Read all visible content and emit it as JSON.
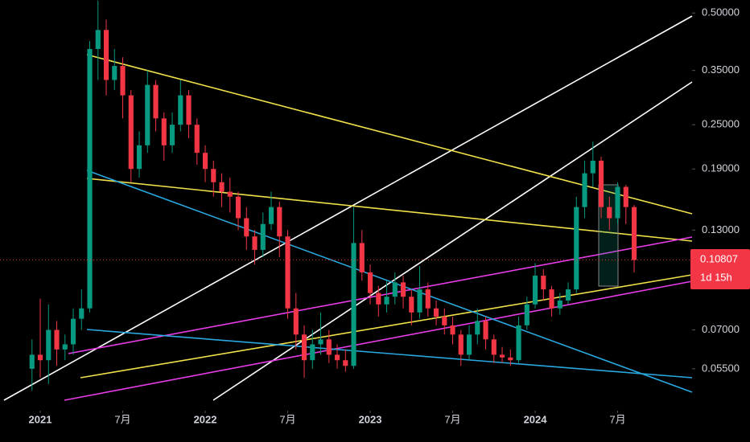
{
  "chart_data": {
    "type": "candlestick",
    "log_scale": true,
    "up_color": "#089981",
    "down_color": "#f23645",
    "x": [
      2020.95,
      2021.0,
      2021.05,
      2021.1,
      2021.15,
      2021.2,
      2021.25,
      2021.3,
      2021.35,
      2021.4,
      2021.45,
      2021.5,
      2021.55,
      2021.6,
      2021.65,
      2021.7,
      2021.75,
      2021.8,
      2021.85,
      2021.9,
      2021.95,
      2022.0,
      2022.05,
      2022.1,
      2022.15,
      2022.2,
      2022.25,
      2022.3,
      2022.35,
      2022.4,
      2022.45,
      2022.5,
      2022.55,
      2022.6,
      2022.65,
      2022.7,
      2022.75,
      2022.8,
      2022.85,
      2022.9,
      2022.95,
      2023.0,
      2023.05,
      2023.1,
      2023.15,
      2023.2,
      2023.25,
      2023.3,
      2023.35,
      2023.4,
      2023.45,
      2023.5,
      2023.55,
      2023.6,
      2023.65,
      2023.7,
      2023.75,
      2023.8,
      2023.85,
      2023.9,
      2023.95,
      2024.0,
      2024.05,
      2024.1,
      2024.15,
      2024.2,
      2024.25,
      2024.3,
      2024.35,
      2024.4,
      2024.45,
      2024.5,
      2024.55,
      2024.6
    ],
    "open": [
      0.055,
      0.06,
      0.058,
      0.07,
      0.062,
      0.064,
      0.075,
      0.08,
      0.4,
      0.45,
      0.33,
      0.36,
      0.3,
      0.19,
      0.22,
      0.32,
      0.26,
      0.22,
      0.25,
      0.3,
      0.25,
      0.21,
      0.19,
      0.175,
      0.165,
      0.16,
      0.14,
      0.125,
      0.115,
      0.135,
      0.15,
      0.125,
      0.08,
      0.068,
      0.058,
      0.064,
      0.066,
      0.06,
      0.058,
      0.056,
      0.12,
      0.1,
      0.088,
      0.082,
      0.086,
      0.094,
      0.086,
      0.078,
      0.09,
      0.08,
      0.076,
      0.072,
      0.068,
      0.06,
      0.068,
      0.074,
      0.066,
      0.06,
      0.059,
      0.058,
      0.072,
      0.082,
      0.098,
      0.09,
      0.08,
      0.084,
      0.09,
      0.15,
      0.185,
      0.2,
      0.15,
      0.14,
      0.17,
      0.15
    ],
    "high": [
      0.066,
      0.085,
      0.082,
      0.074,
      0.068,
      0.08,
      0.09,
      0.42,
      0.54,
      0.48,
      0.4,
      0.38,
      0.31,
      0.24,
      0.35,
      0.33,
      0.27,
      0.27,
      0.33,
      0.31,
      0.26,
      0.22,
      0.2,
      0.185,
      0.18,
      0.165,
      0.15,
      0.13,
      0.145,
      0.165,
      0.155,
      0.13,
      0.088,
      0.072,
      0.07,
      0.078,
      0.07,
      0.064,
      0.062,
      0.15,
      0.13,
      0.105,
      0.092,
      0.095,
      0.1,
      0.098,
      0.09,
      0.104,
      0.094,
      0.084,
      0.08,
      0.076,
      0.07,
      0.072,
      0.08,
      0.076,
      0.068,
      0.063,
      0.062,
      0.076,
      0.086,
      0.106,
      0.102,
      0.092,
      0.088,
      0.094,
      0.16,
      0.2,
      0.225,
      0.205,
      0.16,
      0.175,
      0.172,
      0.152
    ],
    "low": [
      0.048,
      0.052,
      0.05,
      0.056,
      0.058,
      0.06,
      0.07,
      0.078,
      0.33,
      0.3,
      0.31,
      0.26,
      0.175,
      0.18,
      0.21,
      0.24,
      0.2,
      0.21,
      0.24,
      0.23,
      0.195,
      0.175,
      0.16,
      0.15,
      0.145,
      0.13,
      0.115,
      0.105,
      0.11,
      0.13,
      0.11,
      0.075,
      0.062,
      0.052,
      0.055,
      0.06,
      0.057,
      0.055,
      0.054,
      0.055,
      0.095,
      0.082,
      0.076,
      0.078,
      0.082,
      0.08,
      0.072,
      0.075,
      0.076,
      0.072,
      0.068,
      0.064,
      0.056,
      0.058,
      0.064,
      0.062,
      0.057,
      0.057,
      0.056,
      0.057,
      0.07,
      0.08,
      0.084,
      0.076,
      0.077,
      0.082,
      0.088,
      0.14,
      0.17,
      0.14,
      0.13,
      0.135,
      0.135,
      0.1
    ],
    "close": [
      0.06,
      0.058,
      0.07,
      0.062,
      0.064,
      0.075,
      0.08,
      0.4,
      0.45,
      0.33,
      0.36,
      0.3,
      0.19,
      0.22,
      0.32,
      0.26,
      0.22,
      0.25,
      0.3,
      0.25,
      0.21,
      0.19,
      0.175,
      0.165,
      0.16,
      0.14,
      0.125,
      0.115,
      0.135,
      0.15,
      0.125,
      0.08,
      0.068,
      0.058,
      0.064,
      0.066,
      0.06,
      0.058,
      0.056,
      0.12,
      0.1,
      0.088,
      0.082,
      0.086,
      0.094,
      0.086,
      0.078,
      0.09,
      0.08,
      0.076,
      0.072,
      0.068,
      0.06,
      0.068,
      0.074,
      0.066,
      0.06,
      0.059,
      0.058,
      0.072,
      0.082,
      0.098,
      0.09,
      0.08,
      0.084,
      0.09,
      0.15,
      0.185,
      0.2,
      0.15,
      0.14,
      0.17,
      0.15,
      0.108
    ],
    "xlim": [
      2020.756,
      2024.951
    ],
    "xticks": [
      2021,
      {
        "value": 2021.5,
        "label": "7月"
      },
      2022,
      {
        "value": 2022.5,
        "label": "7月"
      },
      2023,
      {
        "value": 2023.5,
        "label": "7月"
      },
      2024,
      {
        "value": 2024.5,
        "label": "7月"
      }
    ],
    "ylim": [
      0.0437,
      0.542
    ],
    "yticks": [
      {
        "value": 0.5,
        "label": "0.50000"
      },
      {
        "value": 0.35,
        "label": "0.35000"
      },
      {
        "value": 0.25,
        "label": "0.25000"
      },
      {
        "value": 0.19,
        "label": "0.19000"
      },
      {
        "value": 0.13,
        "label": "0.13000"
      },
      {
        "value": 0.07,
        "label": "0.07000"
      },
      {
        "value": 0.055,
        "label": "0.05500"
      }
    ],
    "last_price": 0.10807,
    "countdown": "1d 15h"
  }
}
